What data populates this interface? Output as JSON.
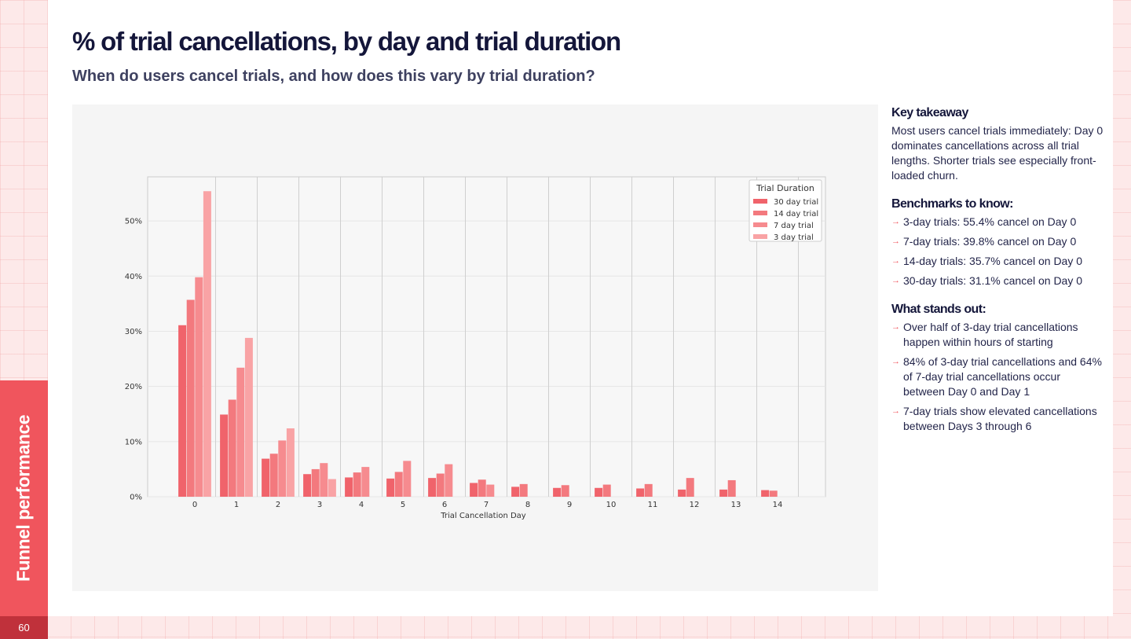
{
  "header": {
    "title": "% of trial cancellations, by day and trial duration",
    "subtitle": "When do users cancel trials, and how does this vary by trial duration?"
  },
  "sidebar": {
    "section_label": "Funnel performance",
    "page_number": "60"
  },
  "colors": {
    "accent": "#f0555d",
    "page_badge": "#c0313b",
    "series": [
      "#f0636b",
      "#f3797e",
      "#f68b8f",
      "#f9a3a5"
    ]
  },
  "takeaways": {
    "key_title": "Key takeaway",
    "key_text": "Most users cancel trials immediately: Day 0 dominates cancellations across all trial lengths. Shorter trials see especially front-loaded churn.",
    "benchmarks_title": "Benchmarks to know:",
    "benchmarks": [
      "3-day trials: 55.4% cancel on Day 0",
      "7-day trials: 39.8% cancel on Day 0",
      "14-day trials: 35.7% cancel on Day 0",
      "30-day trials: 31.1% cancel on Day 0"
    ],
    "standout_title": "What stands out:",
    "standouts": [
      "Over half of 3-day trial cancellations happen within hours of starting",
      "84% of 3-day trial cancellations and 64% of 7-day trial cancellations occur between Day 0 and Day 1",
      "7-day trials show elevated cancellations between Days 3 through 6"
    ]
  },
  "chart_data": {
    "type": "bar",
    "xlabel": "Trial Cancellation Day",
    "ylabel": "",
    "categories": [
      "0",
      "1",
      "2",
      "3",
      "4",
      "5",
      "6",
      "7",
      "8",
      "9",
      "10",
      "11",
      "12",
      "13",
      "14"
    ],
    "ylim": [
      0,
      58
    ],
    "yticks": [
      0,
      10,
      20,
      30,
      40,
      50
    ],
    "ytick_labels": [
      "0%",
      "10%",
      "20%",
      "30%",
      "40%",
      "50%"
    ],
    "grid": true,
    "legend": {
      "title": "Trial Duration",
      "placement": "top-right"
    },
    "series": [
      {
        "name": "30 day trial",
        "values": [
          31.1,
          14.9,
          6.9,
          4.1,
          3.5,
          3.3,
          3.4,
          2.5,
          1.8,
          1.6,
          1.6,
          1.5,
          1.3,
          1.3,
          1.2
        ]
      },
      {
        "name": "14 day trial",
        "values": [
          35.7,
          17.6,
          7.8,
          5.0,
          4.4,
          4.5,
          4.2,
          3.1,
          2.3,
          2.1,
          2.2,
          2.3,
          3.4,
          3.0,
          1.1
        ]
      },
      {
        "name": "7 day trial",
        "values": [
          39.8,
          23.4,
          10.2,
          6.1,
          5.4,
          6.5,
          5.9,
          2.2,
          0,
          0,
          0,
          0,
          0,
          0,
          0
        ]
      },
      {
        "name": "3 day trial",
        "values": [
          55.4,
          28.8,
          12.4,
          3.2,
          0,
          0,
          0,
          0,
          0,
          0,
          0,
          0,
          0,
          0,
          0
        ]
      }
    ]
  }
}
